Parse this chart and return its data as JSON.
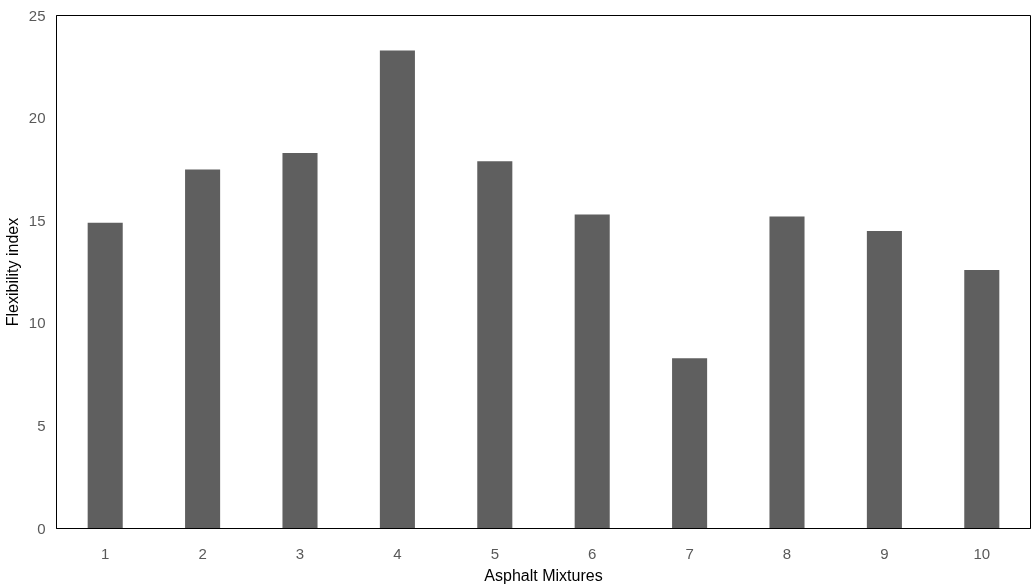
{
  "chart_data": {
    "type": "bar",
    "xlabel": "Asphalt Mixtures",
    "ylabel": "Flexibility index",
    "categories": [
      "1",
      "2",
      "3",
      "4",
      "5",
      "6",
      "7",
      "8",
      "9",
      "10"
    ],
    "values": [
      14.9,
      17.5,
      18.3,
      23.3,
      17.9,
      15.3,
      8.3,
      15.2,
      14.5,
      12.6
    ],
    "color": "#5f5f5f",
    "ylim": [
      0,
      25
    ],
    "yticks": [
      0,
      5,
      10,
      15,
      20,
      25
    ],
    "grid": false
  }
}
